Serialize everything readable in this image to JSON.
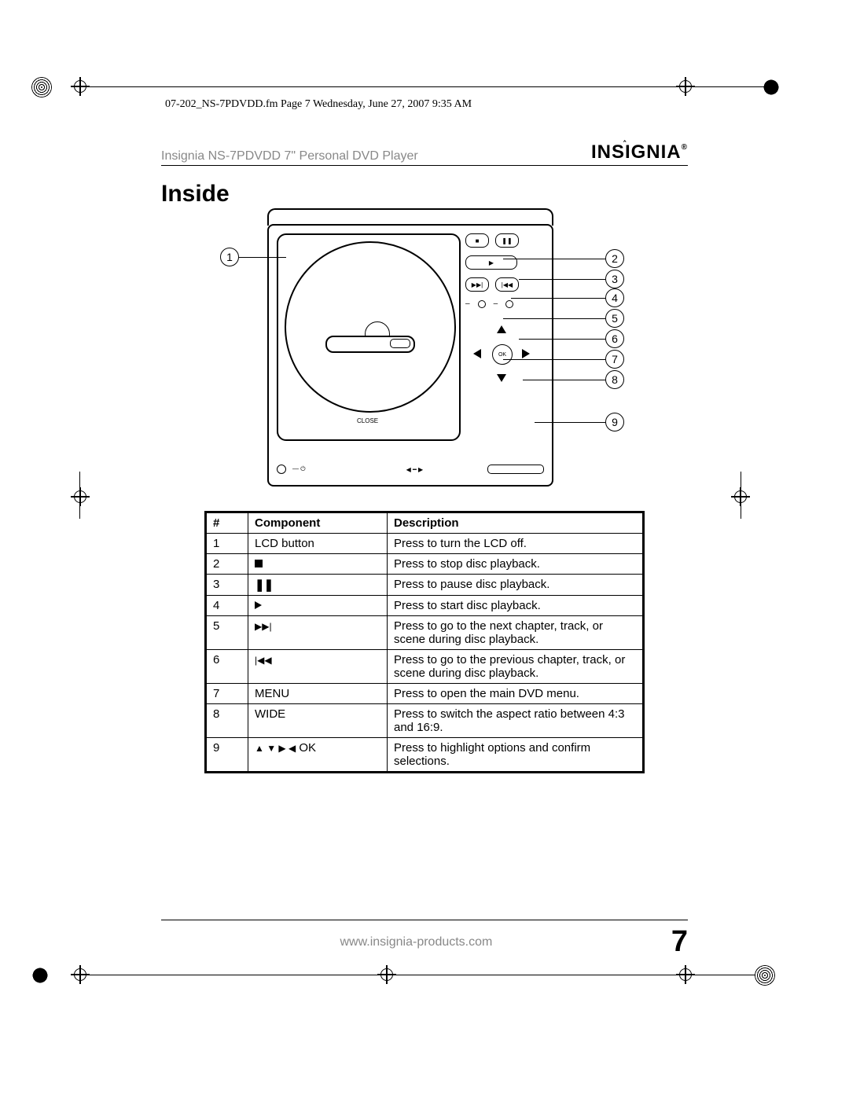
{
  "framemaker_header": "07-202_NS-7PDVDD.fm  Page 7  Wednesday, June 27, 2007  9:35 AM",
  "product_title": "Insignia NS-7PDVDD 7\" Personal DVD Player",
  "brand": "INSIGNIA",
  "section_heading": "Inside",
  "page_number": "7",
  "footer_url": "www.insignia-products.com",
  "diagram": {
    "close_label": "CLOSE",
    "dpad_center": "OK"
  },
  "callouts": {
    "c1": "1",
    "c2": "2",
    "c3": "3",
    "c4": "4",
    "c5": "5",
    "c6": "6",
    "c7": "7",
    "c8": "8",
    "c9": "9"
  },
  "table": {
    "headers": {
      "num": "#",
      "component": "Component",
      "description": "Description"
    },
    "rows": [
      {
        "num": "1",
        "component_text": "LCD button",
        "component_icon": "",
        "description": "Press to turn the LCD off."
      },
      {
        "num": "2",
        "component_text": "",
        "component_icon": "stop",
        "description": "Press to stop disc playback."
      },
      {
        "num": "3",
        "component_text": "",
        "component_icon": "pause",
        "description": "Press to pause disc playback."
      },
      {
        "num": "4",
        "component_text": "",
        "component_icon": "play",
        "description": "Press to start disc playback."
      },
      {
        "num": "5",
        "component_text": "",
        "component_icon": "next",
        "description": "Press to go to the next chapter, track, or scene during disc playback."
      },
      {
        "num": "6",
        "component_text": "",
        "component_icon": "prev",
        "description": "Press to go to the previous chapter, track, or scene during disc playback."
      },
      {
        "num": "7",
        "component_text": "MENU",
        "component_icon": "",
        "description": "Press to open the main DVD menu."
      },
      {
        "num": "8",
        "component_text": "WIDE",
        "component_icon": "",
        "description": "Press to switch the aspect ratio between 4:3 and 16:9."
      },
      {
        "num": "9",
        "component_text": " OK",
        "component_icon": "arrows",
        "description": "Press to highlight options and confirm selections."
      }
    ]
  }
}
